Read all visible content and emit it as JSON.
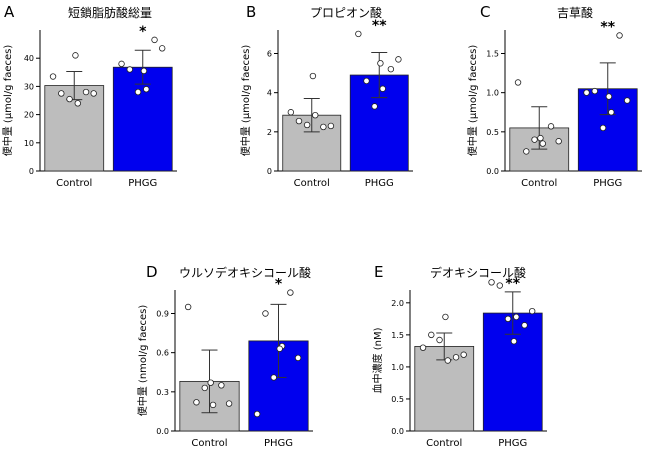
{
  "colors": {
    "control": "#bdbdbd",
    "phgg": "#0000ee",
    "axis": "#000000"
  },
  "chart_data": [
    {
      "panel_label": "A",
      "type": "bar",
      "title": "短鎖脂肪酸総量",
      "ylabel": "便中量 (μmol/g faeces)",
      "categories": [
        "Control",
        "PHGG"
      ],
      "ylim": [
        0,
        50
      ],
      "yticks": [
        0,
        10,
        20,
        30,
        40
      ],
      "values": [
        30.3,
        36.8
      ],
      "sd": [
        5.0,
        6.0
      ],
      "points": [
        [
          33.5,
          27.5,
          25.5,
          24.0,
          28.0,
          27.5,
          41.0
        ],
        [
          38.0,
          36.0,
          28.0,
          29.0,
          46.5,
          43.5,
          35.5
        ]
      ],
      "significance": "*"
    },
    {
      "panel_label": "B",
      "type": "bar",
      "title": "プロピオン酸",
      "ylabel": "便中量 (μmol/g faeces)",
      "categories": [
        "Control",
        "PHGG"
      ],
      "ylim": [
        0,
        7.2
      ],
      "yticks": [
        0,
        2,
        4,
        6
      ],
      "values": [
        2.85,
        4.9
      ],
      "sd": [
        0.85,
        1.15
      ],
      "points": [
        [
          3.0,
          2.55,
          2.35,
          2.85,
          2.25,
          2.3,
          4.85
        ],
        [
          7.0,
          4.6,
          3.3,
          4.2,
          5.2,
          5.7,
          5.5
        ]
      ],
      "significance": "**"
    },
    {
      "panel_label": "C",
      "type": "bar",
      "title": "吉草酸",
      "ylabel": "便中量 (μmol/g faeces)",
      "categories": [
        "Control",
        "PHGG"
      ],
      "ylim": [
        0,
        1.8
      ],
      "yticks": [
        0.0,
        0.5,
        1.0,
        1.5
      ],
      "values": [
        0.55,
        1.05
      ],
      "sd": [
        0.27,
        0.33
      ],
      "points": [
        [
          1.13,
          0.25,
          0.4,
          0.35,
          0.57,
          0.38,
          0.42
        ],
        [
          1.0,
          1.02,
          0.55,
          0.75,
          1.73,
          0.9,
          0.95
        ]
      ],
      "significance": "**"
    },
    {
      "panel_label": "D",
      "type": "bar",
      "title": "ウルソデオキシコール酸",
      "ylabel": "便中量 (nmol/g faeces)",
      "categories": [
        "Control",
        "PHGG"
      ],
      "ylim": [
        0,
        1.08
      ],
      "yticks": [
        0.0,
        0.3,
        0.6,
        0.9
      ],
      "values": [
        0.38,
        0.69
      ],
      "sd": [
        0.24,
        0.28
      ],
      "points": [
        [
          0.95,
          0.22,
          0.33,
          0.2,
          0.35,
          0.21,
          0.37
        ],
        [
          0.13,
          0.9,
          0.41,
          0.65,
          1.06,
          0.56,
          0.63
        ]
      ],
      "significance": "*"
    },
    {
      "panel_label": "E",
      "type": "bar",
      "title": "デオキシコール酸",
      "ylabel": "血中濃度 (nM)",
      "categories": [
        "Control",
        "PHGG"
      ],
      "ylim": [
        0,
        2.2
      ],
      "yticks": [
        0.0,
        0.5,
        1.0,
        1.5,
        2.0
      ],
      "values": [
        1.32,
        1.84
      ],
      "sd": [
        0.21,
        0.33
      ],
      "points": [
        [
          1.3,
          1.5,
          1.42,
          1.1,
          1.15,
          1.19,
          1.78
        ],
        [
          2.32,
          2.27,
          1.75,
          1.78,
          1.65,
          1.87,
          1.4
        ]
      ],
      "significance": "**"
    }
  ]
}
